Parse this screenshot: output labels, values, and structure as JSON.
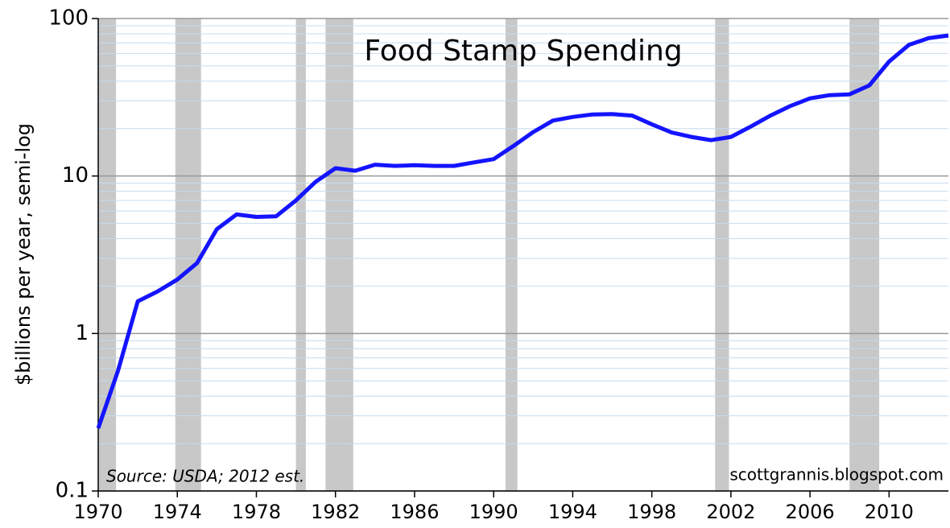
{
  "chart_data": {
    "type": "line",
    "title": "Food Stamp Spending",
    "ylabel": "$billions per year, semi-log",
    "source": "Source: USDA; 2012 est.",
    "credit": "scottgrannis.blogspot.com",
    "x": [
      1970,
      1971,
      1972,
      1973,
      1974,
      1975,
      1976,
      1977,
      1978,
      1979,
      1980,
      1981,
      1982,
      1983,
      1984,
      1985,
      1986,
      1987,
      1988,
      1989,
      1990,
      1991,
      1992,
      1993,
      1994,
      1995,
      1996,
      1997,
      1998,
      1999,
      2000,
      2001,
      2002,
      2003,
      2004,
      2005,
      2006,
      2007,
      2008,
      2009,
      2010,
      2011,
      2012,
      2013
    ],
    "values": [
      0.25,
      0.58,
      1.6,
      1.85,
      2.2,
      2.8,
      4.6,
      5.7,
      5.5,
      5.55,
      7,
      9.2,
      11.2,
      10.8,
      11.8,
      11.6,
      11.7,
      11.6,
      11.6,
      12.2,
      12.8,
      15.5,
      19,
      22.5,
      23.7,
      24.6,
      24.7,
      24.2,
      21.3,
      18.9,
      17.7,
      16.9,
      17.7,
      20.6,
      24.2,
      27.8,
      31.1,
      32.6,
      33,
      37.6,
      53.3,
      68,
      75,
      78
    ],
    "color": "#1414ff",
    "recessions": [
      [
        1970,
        1970.9
      ],
      [
        1973.9,
        1975.2
      ],
      [
        1980,
        1980.5
      ],
      [
        1981.5,
        1982.9
      ],
      [
        1990.6,
        1991.2
      ],
      [
        2001.2,
        2001.9
      ],
      [
        2008,
        2009.5
      ]
    ],
    "recession_color": "#c8c8c8",
    "xlim": [
      1970,
      2013
    ],
    "xticks": [
      1970,
      1974,
      1978,
      1982,
      1986,
      1990,
      1994,
      1998,
      2002,
      2006,
      2010
    ],
    "ylim": [
      0.1,
      100
    ],
    "yticks": [
      0.1,
      1,
      10,
      100
    ],
    "log_y": true,
    "grid": true
  }
}
